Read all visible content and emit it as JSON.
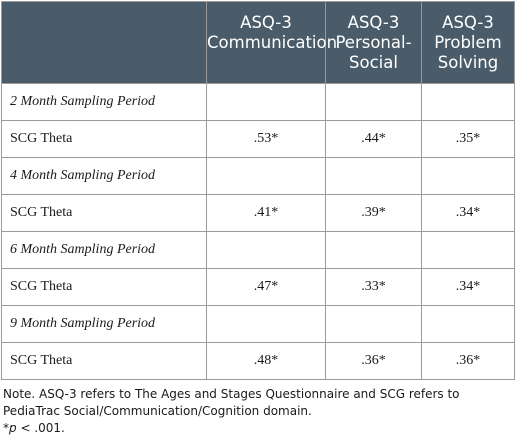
{
  "header": {
    "communication": [
      "ASQ-3",
      "Communication"
    ],
    "personal_social": [
      "ASQ-3",
      "Personal-",
      "Social"
    ],
    "problem_solving": [
      "ASQ-3",
      "Problem",
      "Solving"
    ]
  },
  "periods": [
    {
      "label": "2 Month Sampling Period",
      "measure": "SCG Theta",
      "communication": ".53*",
      "personal_social": ".44*",
      "problem_solving": ".35*"
    },
    {
      "label": "4 Month Sampling Period",
      "measure": "SCG Theta",
      "communication": ".41*",
      "personal_social": ".39*",
      "problem_solving": ".34*"
    },
    {
      "label": "6 Month Sampling Period",
      "measure": "SCG Theta",
      "communication": ".47*",
      "personal_social": ".33*",
      "problem_solving": ".34*"
    },
    {
      "label": "9 Month Sampling Period",
      "measure": "SCG Theta",
      "communication": ".48*",
      "personal_social": ".36*",
      "problem_solving": ".36*"
    }
  ],
  "note": {
    "line1": "Note. ASQ-3 refers to The Ages and Stages Questionnaire and SCG refers to",
    "line2": "PediaTrac Social/Communication/Cognition domain.",
    "sig_marker": "*",
    "sig_p": "p",
    "sig_rest": " < .001."
  }
}
